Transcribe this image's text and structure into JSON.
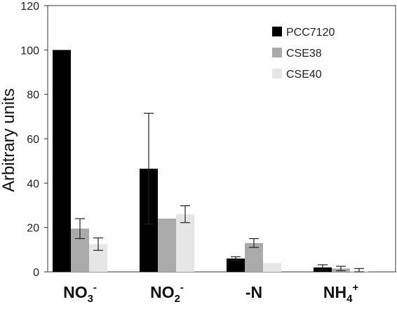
{
  "chart_data": {
    "type": "bar",
    "title": "",
    "xlabel": "",
    "ylabel": "Arbitrary units",
    "ylim": [
      0,
      120
    ],
    "yticks": [
      0,
      20,
      40,
      60,
      80,
      100,
      120
    ],
    "grid": false,
    "legend_position": "top-right",
    "categories": [
      {
        "base": "NO",
        "sub": "3",
        "sup": "-"
      },
      {
        "base": "NO",
        "sub": "2",
        "sup": "-"
      },
      {
        "base": "-N",
        "sub": "",
        "sup": ""
      },
      {
        "base": "NH",
        "sub": "4",
        "sup": "+"
      }
    ],
    "series": [
      {
        "name": "PCC7120",
        "color": "#000000",
        "values": [
          100,
          46.5,
          6,
          2
        ],
        "errors": [
          0,
          25,
          0.8,
          1.2
        ]
      },
      {
        "name": "CSE38",
        "color": "#aaaaaa",
        "values": [
          19.5,
          24,
          13,
          1.5
        ],
        "errors": [
          4.5,
          0,
          2,
          1
        ]
      },
      {
        "name": "CSE40",
        "color": "#e6e6e6",
        "values": [
          12.5,
          26,
          4,
          0.5
        ],
        "errors": [
          2.8,
          3.8,
          0,
          1
        ]
      }
    ]
  }
}
